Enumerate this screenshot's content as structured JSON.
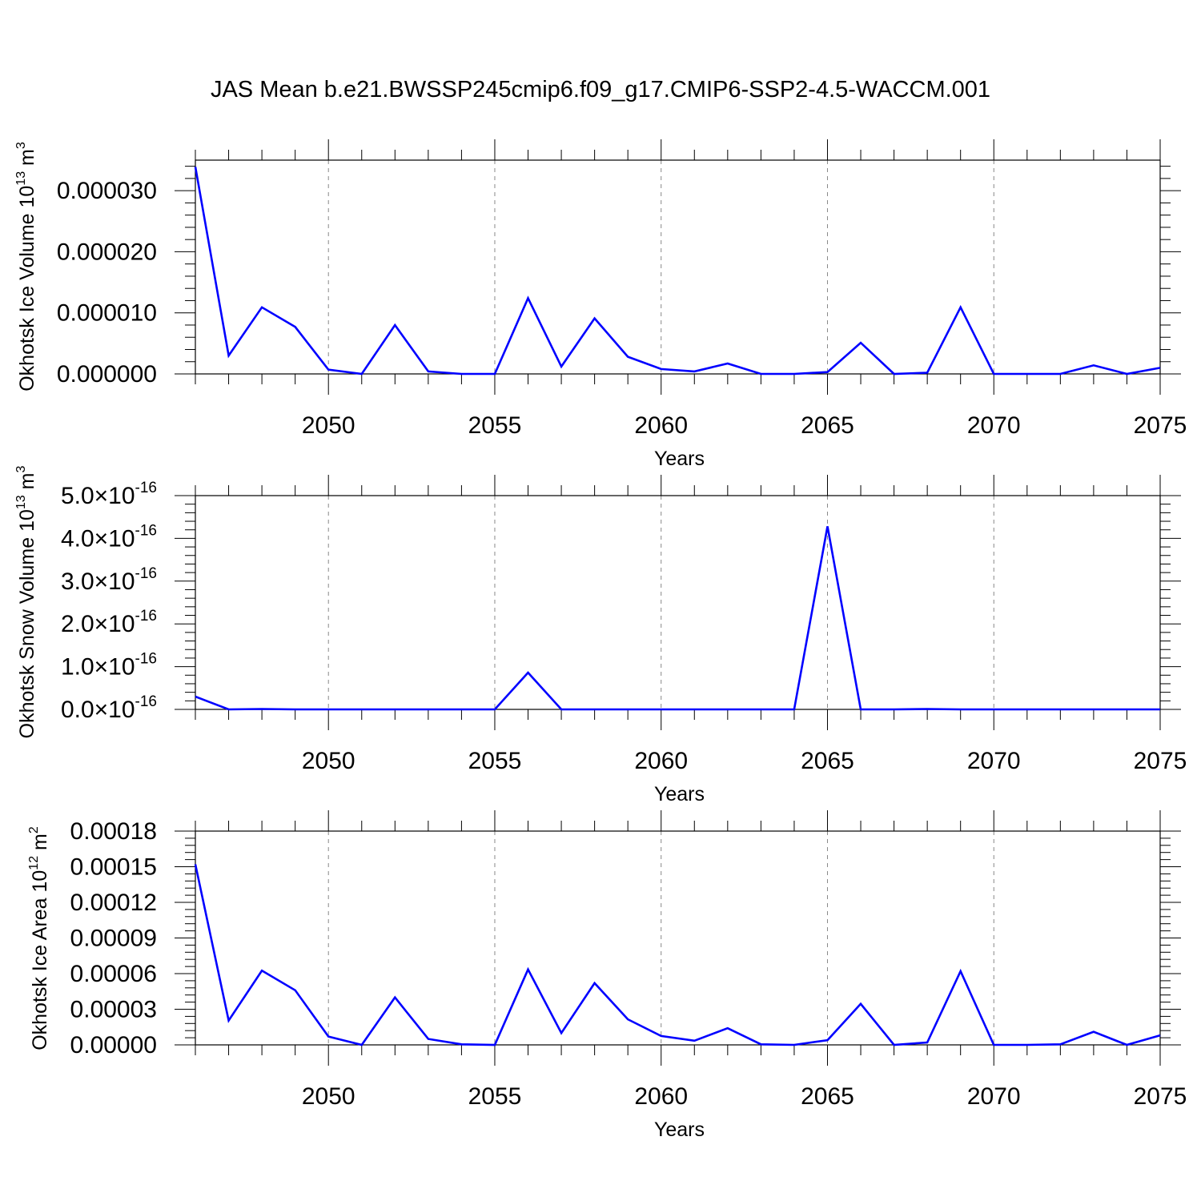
{
  "title": "JAS Mean b.e21.BWSSP245cmip6.f09_g17.CMIP6-SSP2-4.5-WACCM.001",
  "chart_data": [
    {
      "type": "line",
      "ylabel": "Okhotsk Ice Volume",
      "ylabel_unit_base": "10",
      "ylabel_unit_exp": "13",
      "ylabel_unit_rest": " m",
      "ylabel_unit_sup": "3",
      "xlabel": "Years",
      "xlim": [
        2046,
        2075
      ],
      "ylim": [
        0.0,
        3.5e-05
      ],
      "x_ticks": [
        2050,
        2055,
        2060,
        2065,
        2070,
        2075
      ],
      "y_ticks": [
        {
          "value": 0.0,
          "label": "0.000000"
        },
        {
          "value": 1e-05,
          "label": "0.000010"
        },
        {
          "value": 2e-05,
          "label": "0.000020"
        },
        {
          "value": 3e-05,
          "label": "0.000030"
        }
      ],
      "grid": "vertical-dashed",
      "line_color": "#0000ff",
      "series": [
        {
          "x": [
            2046,
            2047,
            2048,
            2049,
            2050,
            2051,
            2052,
            2053,
            2054,
            2055,
            2056,
            2057,
            2058,
            2059,
            2060,
            2061,
            2062,
            2063,
            2064,
            2065,
            2066,
            2067,
            2068,
            2069,
            2070,
            2071,
            2072,
            2073,
            2074,
            2075
          ],
          "values": [
            3.39e-05,
            3e-06,
            1.09e-05,
            7.7e-06,
            7e-07,
            0.0,
            8e-06,
            4e-07,
            0.0,
            0.0,
            1.24e-05,
            1.2e-06,
            9.1e-06,
            2.8e-06,
            8e-07,
            4e-07,
            1.7e-06,
            0.0,
            0.0,
            3e-07,
            5.1e-06,
            0.0,
            2e-07,
            1.09e-05,
            0.0,
            0.0,
            0.0,
            1.4e-06,
            0.0,
            1e-06
          ]
        }
      ]
    },
    {
      "type": "line",
      "ylabel": "Okhotsk Snow Volume",
      "ylabel_unit_base": "10",
      "ylabel_unit_exp": "13",
      "ylabel_unit_rest": " m",
      "ylabel_unit_sup": "3",
      "xlabel": "Years",
      "xlim": [
        2046,
        2075
      ],
      "ylim": [
        0.0,
        5e-16
      ],
      "x_ticks": [
        2050,
        2055,
        2060,
        2065,
        2070,
        2075
      ],
      "y_ticks": [
        {
          "value": 0.0,
          "mant": "0.0",
          "exp": "-16"
        },
        {
          "value": 1e-16,
          "mant": "1.0",
          "exp": "-16"
        },
        {
          "value": 2e-16,
          "mant": "2.0",
          "exp": "-16"
        },
        {
          "value": 3e-16,
          "mant": "3.0",
          "exp": "-16"
        },
        {
          "value": 4e-16,
          "mant": "4.0",
          "exp": "-16"
        },
        {
          "value": 5e-16,
          "mant": "5.0",
          "exp": "-16"
        }
      ],
      "grid": "vertical-dashed",
      "line_color": "#0000ff",
      "series": [
        {
          "x": [
            2046,
            2047,
            2048,
            2049,
            2050,
            2051,
            2052,
            2053,
            2054,
            2055,
            2056,
            2057,
            2058,
            2059,
            2060,
            2061,
            2062,
            2063,
            2064,
            2065,
            2066,
            2067,
            2068,
            2069,
            2070,
            2071,
            2072,
            2073,
            2074,
            2075
          ],
          "values": [
            3e-17,
            0.0,
            1e-18,
            0.0,
            0.0,
            0.0,
            0.0,
            0.0,
            0.0,
            0.0,
            8.6e-17,
            0.0,
            0.0,
            0.0,
            0.0,
            0.0,
            0.0,
            0.0,
            0.0,
            4.28e-16,
            0.0,
            0.0,
            1e-18,
            0.0,
            0.0,
            0.0,
            0.0,
            0.0,
            0.0,
            0.0
          ]
        }
      ]
    },
    {
      "type": "line",
      "ylabel": "Okhotsk Ice Area",
      "ylabel_unit_base": "10",
      "ylabel_unit_exp": "12",
      "ylabel_unit_rest": " m",
      "ylabel_unit_sup": "2",
      "xlabel": "Years",
      "xlim": [
        2046,
        2075
      ],
      "ylim": [
        0.0,
        0.00018
      ],
      "x_ticks": [
        2050,
        2055,
        2060,
        2065,
        2070,
        2075
      ],
      "y_ticks": [
        {
          "value": 0.0,
          "label": "0.00000"
        },
        {
          "value": 3e-05,
          "label": "0.00003"
        },
        {
          "value": 6e-05,
          "label": "0.00006"
        },
        {
          "value": 9e-05,
          "label": "0.00009"
        },
        {
          "value": 0.00012,
          "label": "0.00012"
        },
        {
          "value": 0.00015,
          "label": "0.00015"
        },
        {
          "value": 0.00018,
          "label": "0.00018"
        }
      ],
      "grid": "vertical-dashed",
      "line_color": "#0000ff",
      "series": [
        {
          "x": [
            2046,
            2047,
            2048,
            2049,
            2050,
            2051,
            2052,
            2053,
            2054,
            2055,
            2056,
            2057,
            2058,
            2059,
            2060,
            2061,
            2062,
            2063,
            2064,
            2065,
            2066,
            2067,
            2068,
            2069,
            2070,
            2071,
            2072,
            2073,
            2074,
            2075
          ],
          "values": [
            0.000152,
            2.05e-05,
            6.25e-05,
            4.6e-05,
            7e-06,
            0.0,
            4e-05,
            5e-06,
            5e-07,
            0.0,
            6.35e-05,
            1e-05,
            5.2e-05,
            2.15e-05,
            7.5e-06,
            3.5e-06,
            1.4e-05,
            5e-07,
            0.0,
            4e-06,
            3.45e-05,
            0.0,
            2e-06,
            6.2e-05,
            0.0,
            0.0,
            5e-07,
            1.1e-05,
            0.0,
            8e-06
          ]
        }
      ]
    }
  ]
}
